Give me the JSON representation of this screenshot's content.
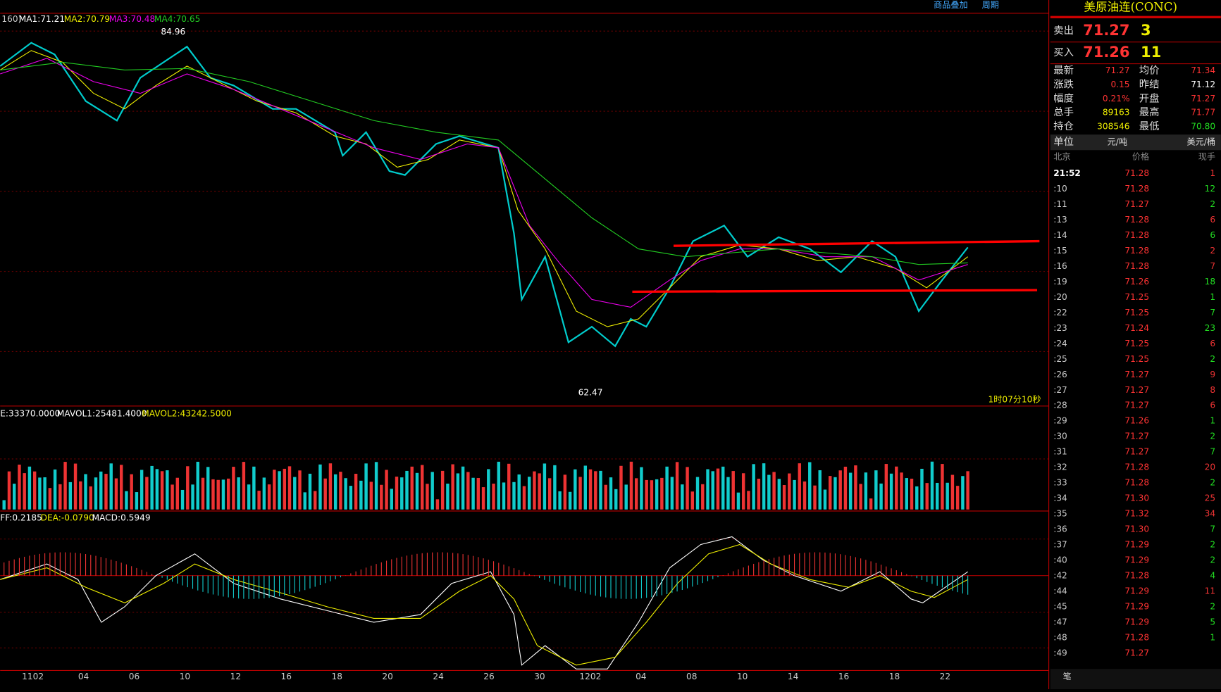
{
  "toolbar": {
    "items": [
      "商品叠加",
      "周期"
    ]
  },
  "main_panel": {
    "prefix": "160)",
    "ma_labels": [
      "MA1:71.21",
      "MA2:70.79",
      "MA3:70.48",
      "MA4:70.65"
    ],
    "high_label": "84.96",
    "low_label": "62.47",
    "timer": "1时07分10秒"
  },
  "volume_panel": {
    "labels": [
      "E:33370.0000",
      "MAVOL1:25481.4000",
      "MAVOL2:43242.5000"
    ]
  },
  "macd_panel": {
    "labels": [
      "FF:0.2185",
      "DEA:-0.0790",
      "MACD:0.5949"
    ]
  },
  "x_axis": {
    "labels": [
      "1102",
      "04",
      "06",
      "10",
      "12",
      "16",
      "18",
      "20",
      "24",
      "26",
      "30",
      "1202",
      "04",
      "08",
      "10",
      "14",
      "16",
      "18",
      "22"
    ]
  },
  "quote": {
    "title": "美原油连(CONC)",
    "sell": {
      "label": "卖出",
      "price": "71.27",
      "size": "3"
    },
    "buy": {
      "label": "买入",
      "price": "71.26",
      "size": "11"
    },
    "stats": [
      [
        "最新",
        "71.27",
        "均价",
        "71.34"
      ],
      [
        "涨跌",
        "0.15",
        "昨结",
        "71.12"
      ],
      [
        "幅度",
        "0.21%",
        "开盘",
        "71.27"
      ],
      [
        "总手",
        "89163",
        "最高",
        "71.77"
      ],
      [
        "持仓",
        "308546",
        "最低",
        "70.80"
      ]
    ],
    "unit": [
      "单位",
      "元/吨",
      "美元/桶"
    ],
    "tick_header": [
      "北京",
      "价格",
      "现手"
    ],
    "ticks": [
      [
        "21:52",
        "71.28",
        "1"
      ],
      [
        ":10",
        "71.28",
        "12"
      ],
      [
        ":11",
        "71.27",
        "2"
      ],
      [
        ":13",
        "71.28",
        "6"
      ],
      [
        ":14",
        "71.28",
        "6"
      ],
      [
        ":15",
        "71.28",
        "2"
      ],
      [
        ":16",
        "71.28",
        "7"
      ],
      [
        ":19",
        "71.26",
        "18"
      ],
      [
        ":20",
        "71.25",
        "1"
      ],
      [
        ":22",
        "71.25",
        "7"
      ],
      [
        ":23",
        "71.24",
        "23"
      ],
      [
        ":24",
        "71.25",
        "6"
      ],
      [
        ":25",
        "71.25",
        "2"
      ],
      [
        ":26",
        "71.27",
        "9"
      ],
      [
        ":27",
        "71.27",
        "8"
      ],
      [
        ":28",
        "71.27",
        "6"
      ],
      [
        ":29",
        "71.26",
        "1"
      ],
      [
        ":30",
        "71.27",
        "2"
      ],
      [
        ":31",
        "71.27",
        "7"
      ],
      [
        ":32",
        "71.28",
        "20"
      ],
      [
        ":33",
        "71.28",
        "2"
      ],
      [
        ":34",
        "71.30",
        "25"
      ],
      [
        ":35",
        "71.32",
        "34"
      ],
      [
        ":36",
        "71.30",
        "7"
      ],
      [
        ":37",
        "71.29",
        "2"
      ],
      [
        ":40",
        "71.29",
        "2"
      ],
      [
        ":42",
        "71.28",
        "4"
      ],
      [
        ":44",
        "71.29",
        "11"
      ],
      [
        ":45",
        "71.29",
        "2"
      ],
      [
        ":47",
        "71.29",
        "5"
      ],
      [
        ":48",
        "71.28",
        "1"
      ],
      [
        ":49",
        "71.27",
        ""
      ]
    ],
    "tick_colors": [
      "#e33",
      "#2d2",
      "#2d2",
      "#e33",
      "#2d2",
      "#e33",
      "#e33",
      "#2d2",
      "#2d2",
      "#2d2",
      "#2d2",
      "#e33",
      "#2d2",
      "#e33",
      "#e33",
      "#e33",
      "#2d2",
      "#2d2",
      "#2d2",
      "#e33",
      "#2d2",
      "#e33",
      "#e33",
      "#2d2",
      "#2d2",
      "#2d2",
      "#2d2",
      "#e33",
      "#2d2",
      "#2d2",
      "#2d2",
      "#2d2"
    ],
    "tab": "笔"
  }
}
